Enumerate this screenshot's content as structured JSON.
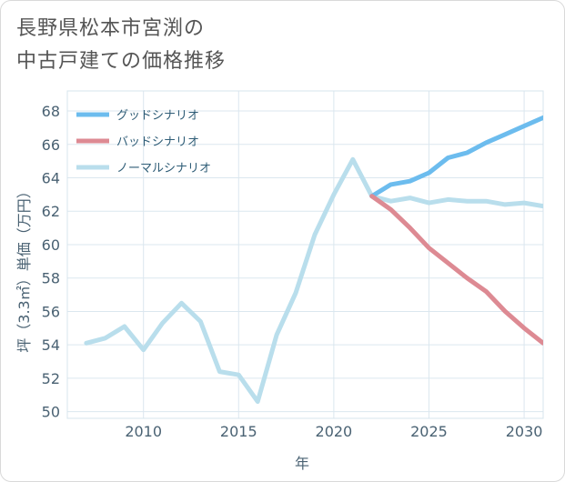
{
  "title_lines": [
    "長野県松本市宮渕の",
    "中古戸建ての価格推移"
  ],
  "chart_data": {
    "type": "line",
    "title": "長野県松本市宮渕の中古戸建ての価格推移",
    "xlabel": "年",
    "ylabel": "坪（3.3㎡）単価（万円）",
    "xlim": [
      2006,
      2031
    ],
    "ylim": [
      49.6,
      69.2
    ],
    "xticks": [
      2010,
      2015,
      2020,
      2025,
      2030
    ],
    "yticks": [
      50,
      52,
      54,
      56,
      58,
      60,
      62,
      64,
      66,
      68
    ],
    "grid": true,
    "legend_position": "top-left",
    "series": [
      {
        "name": "グッドシナリオ",
        "color": "#6cbcee",
        "x": [
          2022,
          2023,
          2024,
          2025,
          2026,
          2027,
          2028,
          2029,
          2030,
          2031
        ],
        "values": [
          62.9,
          63.6,
          63.8,
          64.3,
          65.2,
          65.5,
          66.1,
          66.6,
          67.1,
          67.6
        ]
      },
      {
        "name": "バッドシナリオ",
        "color": "#dd8a93",
        "x": [
          2022,
          2023,
          2024,
          2025,
          2026,
          2027,
          2028,
          2029,
          2030,
          2031
        ],
        "values": [
          62.9,
          62.1,
          61.0,
          59.8,
          58.9,
          58.0,
          57.2,
          56.0,
          55.0,
          54.1
        ]
      },
      {
        "name": "ノーマルシナリオ",
        "color": "#b9deec",
        "x": [
          2007,
          2008,
          2009,
          2010,
          2011,
          2012,
          2013,
          2014,
          2015,
          2016,
          2017,
          2018,
          2019,
          2020,
          2021,
          2022,
          2023,
          2024,
          2025,
          2026,
          2027,
          2028,
          2029,
          2030,
          2031
        ],
        "values": [
          54.1,
          54.4,
          55.1,
          53.7,
          55.3,
          56.5,
          55.4,
          52.4,
          52.2,
          50.6,
          54.6,
          57.1,
          60.6,
          63.0,
          65.1,
          62.9,
          62.6,
          62.8,
          62.5,
          62.7,
          62.6,
          62.6,
          62.4,
          62.5,
          62.3
        ]
      }
    ]
  }
}
